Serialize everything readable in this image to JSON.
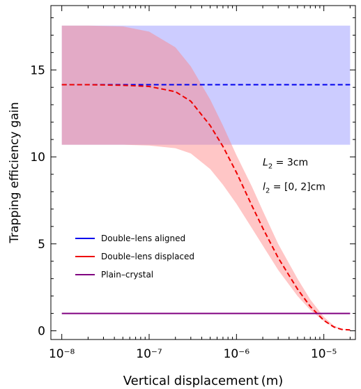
{
  "chart_data": {
    "type": "line",
    "xlabel": "Vertical displacement (m)",
    "ylabel": "Trapping efficiency gain",
    "x_scale": "log",
    "xlim": [
      7.5e-09,
      2.3e-05
    ],
    "ylim": [
      -0.5,
      18.7
    ],
    "grid": false,
    "x_ticks": [
      {
        "value": 1e-08,
        "label": "10⁻⁸"
      },
      {
        "value": 1e-07,
        "label": "10⁻⁷"
      },
      {
        "value": 1e-06,
        "label": "10⁻⁶"
      },
      {
        "value": 1e-05,
        "label": "10⁻⁵"
      }
    ],
    "y_ticks": [
      {
        "value": 0,
        "label": "0"
      },
      {
        "value": 5,
        "label": "5"
      },
      {
        "value": 10,
        "label": "10"
      },
      {
        "value": 15,
        "label": "15"
      }
    ],
    "annotations": [
      {
        "id": "L2",
        "italic": "L",
        "sub": "2",
        "rest": " = 3cm",
        "x": 2e-06,
        "y": 9.5
      },
      {
        "id": "l2",
        "italic": "l",
        "sub": "2",
        "rest": " = [0, 2]cm",
        "x": 2e-06,
        "y": 8.1
      }
    ],
    "legend_position": "center-left",
    "series": [
      {
        "name": "Double–lens aligned",
        "color": "#0000ee",
        "dash": "dashed",
        "x": [
          1e-08,
          2e-05
        ],
        "y": [
          14.15,
          14.15
        ],
        "band": {
          "color": "#9999ff",
          "opacity": 0.5,
          "x": [
            1e-08,
            2e-05
          ],
          "upper": [
            17.55,
            17.55
          ],
          "lower": [
            10.7,
            10.7
          ]
        }
      },
      {
        "name": "Double–lens displaced",
        "color": "#ee0000",
        "dash": "dashed",
        "x": [
          1e-08,
          2e-08,
          5e-08,
          1e-07,
          2e-07,
          3e-07,
          5e-07,
          7e-07,
          1e-06,
          1.5e-06,
          2e-06,
          3e-06,
          5e-06,
          7e-06,
          1e-05,
          1.3e-05,
          1.6e-05,
          2e-05
        ],
        "y": [
          14.15,
          14.15,
          14.12,
          14.05,
          13.75,
          13.2,
          11.8,
          10.6,
          9.1,
          7.2,
          5.9,
          4.2,
          2.4,
          1.4,
          0.6,
          0.22,
          0.08,
          0.05
        ],
        "band": {
          "color": "#ff8080",
          "opacity": 0.45,
          "x": [
            1e-08,
            2e-08,
            5e-08,
            1e-07,
            2e-07,
            3e-07,
            5e-07,
            7e-07,
            1e-06,
            1.5e-06,
            2e-06,
            3e-06,
            5e-06,
            7e-06,
            1e-05,
            1.3e-05,
            1.6e-05,
            2e-05
          ],
          "upper": [
            17.55,
            17.55,
            17.5,
            17.2,
            16.3,
            15.2,
            13.3,
            11.8,
            10.1,
            8.3,
            6.9,
            5.0,
            3.0,
            1.8,
            0.8,
            0.3,
            0.1,
            0.05
          ],
          "lower": [
            10.7,
            10.7,
            10.7,
            10.65,
            10.5,
            10.2,
            9.3,
            8.4,
            7.3,
            5.9,
            4.9,
            3.5,
            2.0,
            1.2,
            0.55,
            0.2,
            0.07,
            0.05
          ]
        }
      },
      {
        "name": "Plain–crystal",
        "color": "#800080",
        "dash": "solid",
        "x": [
          1e-08,
          2e-05
        ],
        "y": [
          1.0,
          1.0
        ]
      }
    ]
  }
}
